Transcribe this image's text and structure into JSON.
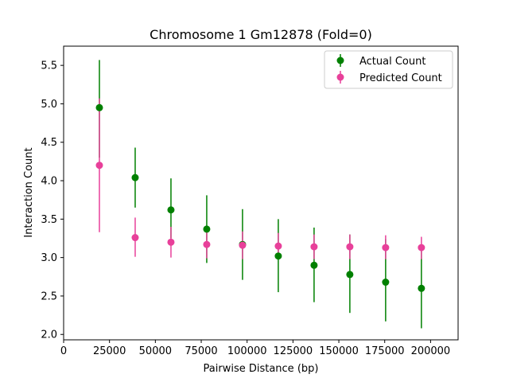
{
  "chart_data": {
    "type": "scatter",
    "title": "Chromosome 1 Gm12878 (Fold=0)",
    "xlabel": "Pairwise Distance (bp)",
    "ylabel": "Interaction Count",
    "xlim": [
      0,
      215000
    ],
    "ylim": [
      1.93,
      5.75
    ],
    "xticks": [
      0,
      25000,
      50000,
      75000,
      100000,
      125000,
      150000,
      175000,
      200000
    ],
    "yticks": [
      2.0,
      2.5,
      3.0,
      3.5,
      4.0,
      4.5,
      5.0,
      5.5
    ],
    "xtick_labels": [
      "0",
      "25000",
      "50000",
      "75000",
      "100000",
      "125000",
      "150000",
      "175000",
      "200000"
    ],
    "ytick_labels": [
      "2.0",
      "2.5",
      "3.0",
      "3.5",
      "4.0",
      "4.5",
      "5.0",
      "5.5"
    ],
    "grid": false,
    "legend_position": "top-right",
    "x": [
      19500,
      39000,
      58500,
      78000,
      97500,
      117000,
      136500,
      156000,
      175500,
      195000
    ],
    "series": [
      {
        "name": "Actual Count",
        "color": "#008000",
        "y": [
          4.95,
          4.04,
          3.62,
          3.37,
          3.17,
          3.02,
          2.9,
          2.78,
          2.68,
          2.6
        ],
        "yerr_low": [
          4.3,
          3.65,
          3.25,
          2.93,
          2.71,
          2.55,
          2.42,
          2.28,
          2.17,
          2.08
        ],
        "yerr_high": [
          5.57,
          4.43,
          4.03,
          3.81,
          3.63,
          3.5,
          3.39,
          3.3,
          3.24,
          3.17
        ]
      },
      {
        "name": "Predicted Count",
        "color": "#e8409a",
        "y": [
          4.2,
          3.26,
          3.2,
          3.17,
          3.16,
          3.15,
          3.14,
          3.14,
          3.13,
          3.13
        ],
        "yerr_low": [
          3.33,
          3.01,
          3.0,
          2.99,
          2.98,
          2.98,
          2.98,
          2.98,
          2.98,
          2.98
        ],
        "yerr_high": [
          5.07,
          3.52,
          3.4,
          3.35,
          3.34,
          3.32,
          3.3,
          3.3,
          3.29,
          3.27
        ]
      }
    ]
  }
}
